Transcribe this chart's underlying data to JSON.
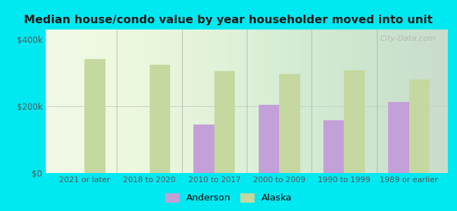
{
  "title": "Median house/condo value by year householder moved into unit",
  "categories": [
    "2021 or later",
    "2018 to 2020",
    "2010 to 2017",
    "2000 to 2009",
    "1990 to 1999",
    "1989 or earlier"
  ],
  "anderson_values": [
    null,
    null,
    145000,
    205000,
    158000,
    212000
  ],
  "alaska_values": [
    342000,
    325000,
    305000,
    298000,
    308000,
    280000
  ],
  "anderson_color": "#c4a0d8",
  "alaska_color": "#c5d8a0",
  "background_outer": "#00e8f0",
  "background_inner_color": "#eef8e8",
  "yticks": [
    0,
    200000,
    400000
  ],
  "ytick_labels": [
    "$0",
    "$200k",
    "$400k"
  ],
  "ylim": [
    0,
    430000
  ],
  "legend_anderson": "Anderson",
  "legend_alaska": "Alaska",
  "watermark": "City-Data.com"
}
